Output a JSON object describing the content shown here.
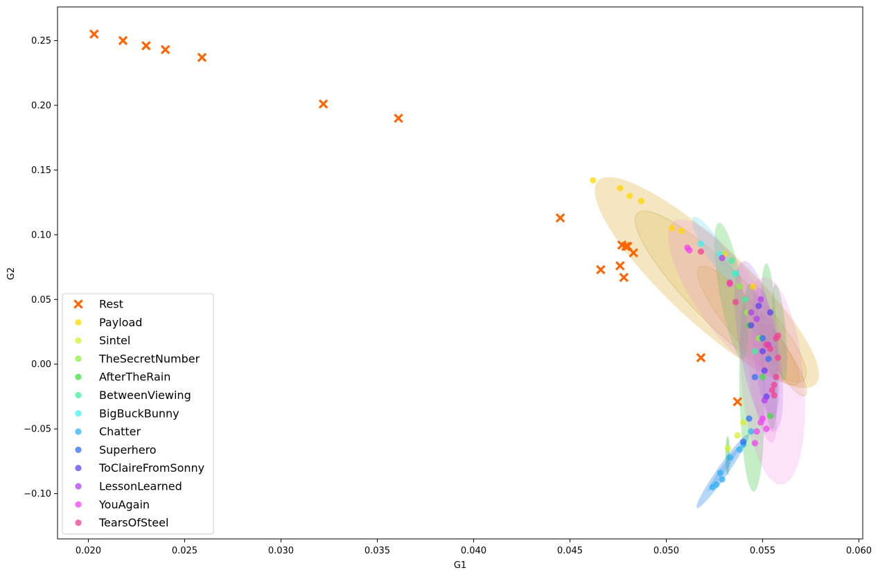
{
  "chart_data": {
    "type": "scatter",
    "title": "",
    "xlabel": "G1",
    "ylabel": "G2",
    "xlim": [
      0.0184,
      0.0602
    ],
    "ylim": [
      -0.135,
      0.276
    ],
    "xticks": [
      0.02,
      0.025,
      0.03,
      0.035,
      0.04,
      0.045,
      0.05,
      0.055,
      0.06
    ],
    "xtick_labels": [
      "0.020",
      "0.025",
      "0.030",
      "0.035",
      "0.040",
      "0.045",
      "0.050",
      "0.055",
      "0.060"
    ],
    "yticks": [
      -0.1,
      -0.05,
      0.0,
      0.05,
      0.1,
      0.15,
      0.2,
      0.25
    ],
    "ytick_labels": [
      "−0.10",
      "−0.05",
      "0.00",
      "0.05",
      "0.10",
      "0.15",
      "0.20",
      "0.25"
    ],
    "grid": false,
    "legend_position": "lower-left",
    "density_contours": true,
    "series": [
      {
        "name": "Rest",
        "color": "#ff6600",
        "marker": "x-filled",
        "x": [
          0.0203,
          0.0218,
          0.023,
          0.024,
          0.0259,
          0.0322,
          0.0361,
          0.0445,
          0.0466,
          0.0476,
          0.0477,
          0.0478,
          0.0479,
          0.048,
          0.0483,
          0.0518,
          0.0537
        ],
        "y": [
          0.255,
          0.25,
          0.246,
          0.243,
          0.237,
          0.201,
          0.19,
          0.113,
          0.073,
          0.076,
          0.092,
          0.067,
          0.091,
          0.091,
          0.086,
          0.005,
          -0.029
        ]
      },
      {
        "name": "Payload",
        "color": "#ffd700",
        "x": [
          0.0462,
          0.0476,
          0.0481,
          0.0487,
          0.0503,
          0.0508,
          0.053,
          0.0545
        ],
        "y": [
          0.142,
          0.136,
          0.13,
          0.126,
          0.105,
          0.103,
          0.085,
          0.06
        ]
      },
      {
        "name": "Sintel",
        "color": "#d4f030",
        "x": [
          0.0532,
          0.0537,
          0.054
        ],
        "y": [
          -0.065,
          -0.055,
          -0.045
        ]
      },
      {
        "name": "TheSecretNumber",
        "color": "#8cf040",
        "x": [
          0.0538,
          0.0542,
          0.0548
        ],
        "y": [
          0.06,
          0.04,
          0.02
        ]
      },
      {
        "name": "AfterTheRain",
        "color": "#40e040",
        "x": [
          0.0536,
          0.0543,
          0.055,
          0.0554
        ],
        "y": [
          0.07,
          0.03,
          -0.01,
          -0.04
        ]
      },
      {
        "name": "BetweenViewing",
        "color": "#40f0a0",
        "x": [
          0.0534,
          0.0541,
          0.0546
        ],
        "y": [
          0.08,
          0.05,
          0.01
        ]
      },
      {
        "name": "BigBuckBunny",
        "color": "#40f0f0",
        "x": [
          0.0518,
          0.0528,
          0.0536
        ],
        "y": [
          0.093,
          0.085,
          0.07
        ]
      },
      {
        "name": "Chatter",
        "color": "#30b0f0",
        "x": [
          0.0524,
          0.0526,
          0.0528,
          0.0529,
          0.0533,
          0.0538,
          0.054,
          0.0544
        ],
        "y": [
          -0.095,
          -0.093,
          -0.084,
          -0.089,
          -0.072,
          -0.066,
          -0.062,
          -0.052
        ]
      },
      {
        "name": "Superhero",
        "color": "#3070f0",
        "x": [
          0.054,
          0.0543,
          0.0546,
          0.055,
          0.0553
        ],
        "y": [
          -0.06,
          -0.042,
          -0.01,
          0.02,
          0.004
        ]
      },
      {
        "name": "ToClaireFromSonny",
        "color": "#6040f0",
        "x": [
          0.0544,
          0.0548,
          0.055,
          0.0551,
          0.0552,
          0.0554
        ],
        "y": [
          0.03,
          0.045,
          0.01,
          -0.005,
          -0.025,
          0.04
        ]
      },
      {
        "name": "LessonLearned",
        "color": "#b040f0",
        "x": [
          0.0529,
          0.0544,
          0.0547,
          0.0549,
          0.0551,
          0.0553
        ],
        "y": [
          0.082,
          0.04,
          0.035,
          0.05,
          -0.028,
          0.015
        ]
      },
      {
        "name": "YouAgain",
        "color": "#f040f0",
        "x": [
          0.0511,
          0.0512,
          0.0533,
          0.0546,
          0.0547,
          0.0549,
          0.055,
          0.0552
        ],
        "y": [
          0.09,
          0.088,
          0.062,
          -0.061,
          -0.052,
          -0.045,
          -0.042,
          -0.05
        ]
      },
      {
        "name": "TearsOfSteel",
        "color": "#f04090",
        "x": [
          0.0518,
          0.0533,
          0.0536,
          0.0552,
          0.0554,
          0.0555,
          0.0556,
          0.0557,
          0.0558,
          0.0558,
          0.0557,
          0.0556
        ],
        "y": [
          0.087,
          0.063,
          0.048,
          0.015,
          0.012,
          -0.02,
          -0.024,
          0.02,
          0.022,
          0.005,
          -0.01,
          -0.016
        ]
      }
    ]
  }
}
